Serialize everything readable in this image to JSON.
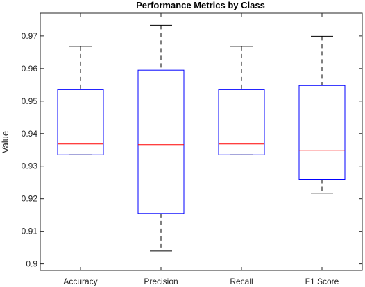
{
  "chart_data": {
    "type": "box",
    "title": "Performance Metrics by Class",
    "xlabel": "",
    "ylabel": "Value",
    "ylim": [
      0.898,
      0.977
    ],
    "yticks": [
      0.9,
      0.91,
      0.92,
      0.93,
      0.94,
      0.95,
      0.96,
      0.97
    ],
    "ytick_labels": [
      "0.9",
      "0.91",
      "0.92",
      "0.93",
      "0.94",
      "0.95",
      "0.96",
      "0.97"
    ],
    "categories": [
      "Accuracy",
      "Precision",
      "Recall",
      "F1 Score"
    ],
    "boxes": [
      {
        "min": 0.9335,
        "q1": 0.9335,
        "median": 0.9368,
        "q3": 0.9535,
        "max": 0.9668
      },
      {
        "min": 0.904,
        "q1": 0.9155,
        "median": 0.9366,
        "q3": 0.9595,
        "max": 0.9733
      },
      {
        "min": 0.9335,
        "q1": 0.9335,
        "median": 0.9368,
        "q3": 0.9535,
        "max": 0.9668
      },
      {
        "min": 0.9217,
        "q1": 0.926,
        "median": 0.9349,
        "q3": 0.9548,
        "max": 0.9699
      }
    ],
    "grid": false,
    "colors": {
      "box": "#0000ff",
      "median": "#ff0000",
      "whisker": "#000000",
      "axis": "#262626"
    }
  }
}
